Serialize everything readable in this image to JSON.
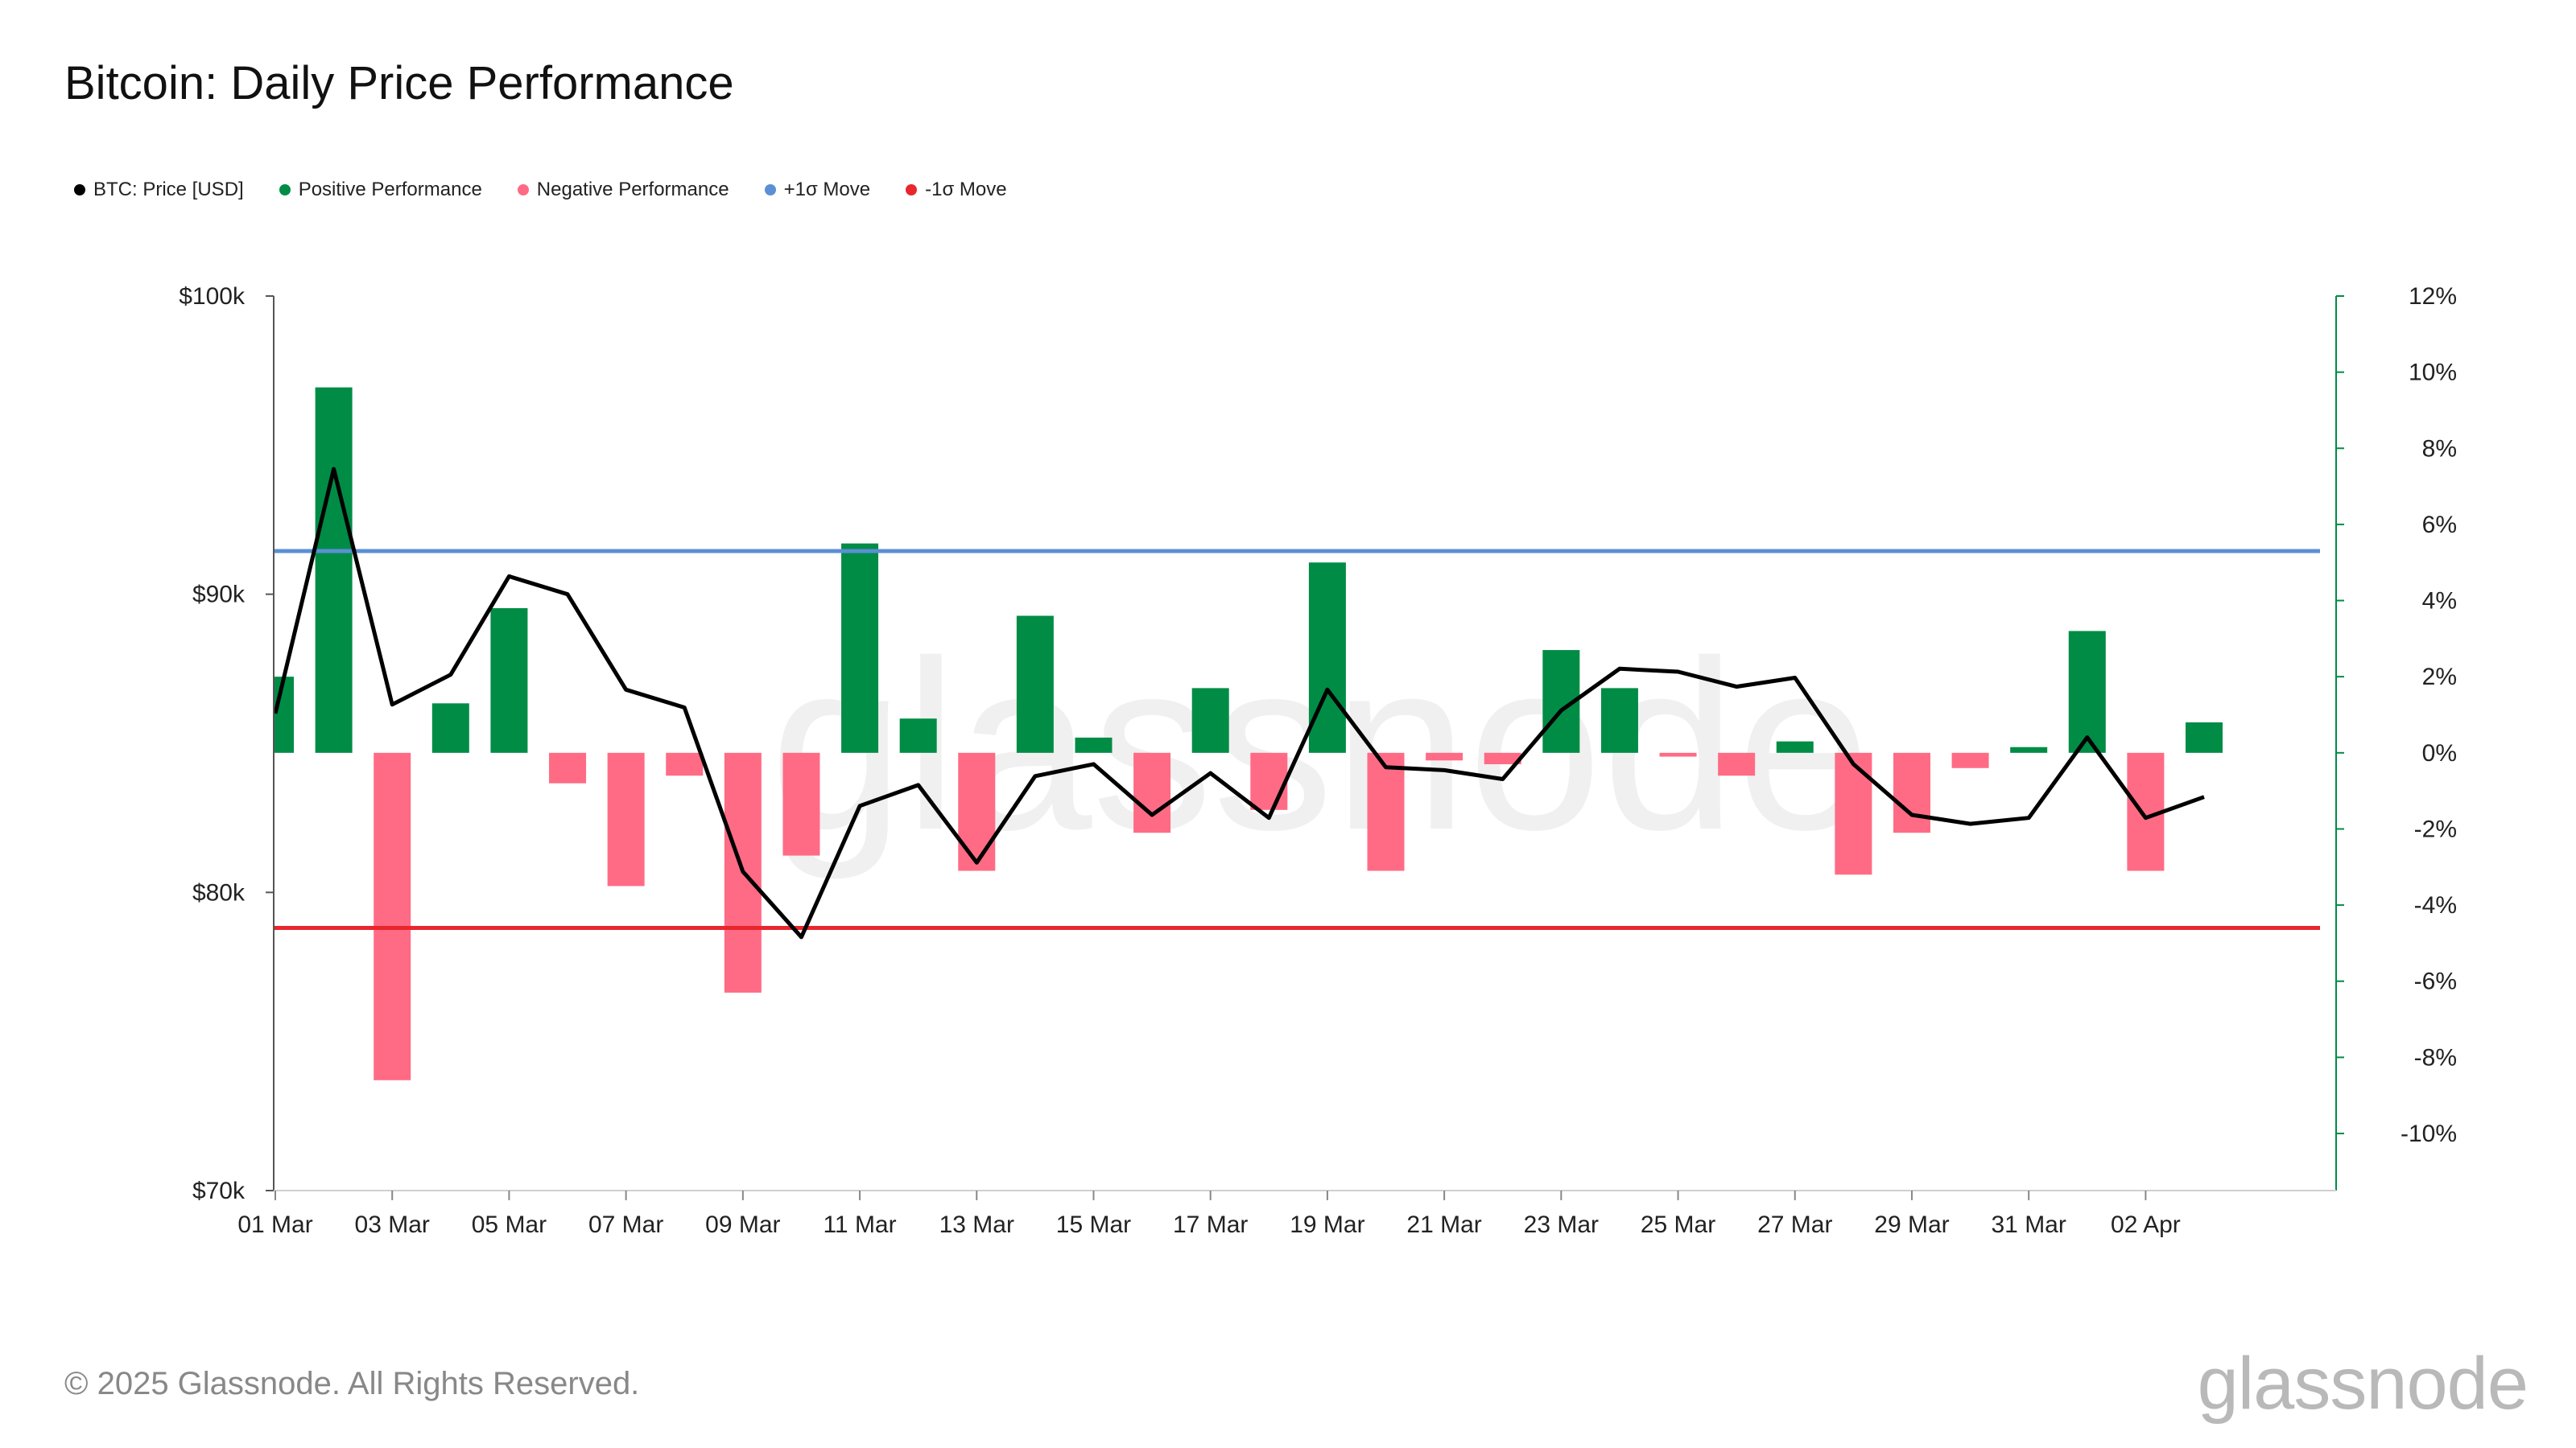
{
  "title": "Bitcoin: Daily Price Performance",
  "footer": "© 2025 Glassnode. All Rights Reserved.",
  "brand": "glassnode",
  "watermark": "glassnode",
  "colors": {
    "price": "#000000",
    "positive": "#008c45",
    "negative": "#ff6b85",
    "plus_sigma": "#5b8fd6",
    "minus_sigma": "#e8262e"
  },
  "legend": [
    {
      "label": "BTC: Price [USD]",
      "color": "#000000"
    },
    {
      "label": "Positive Performance",
      "color": "#008c45"
    },
    {
      "label": "Negative Performance",
      "color": "#ff6b85"
    },
    {
      "label": "+1σ Move",
      "color": "#5b8fd6"
    },
    {
      "label": "-1σ Move",
      "color": "#e8262e"
    }
  ],
  "chart_data": {
    "type": "bar",
    "x": [
      "01 Mar",
      "02 Mar",
      "03 Mar",
      "04 Mar",
      "05 Mar",
      "06 Mar",
      "07 Mar",
      "08 Mar",
      "09 Mar",
      "10 Mar",
      "11 Mar",
      "12 Mar",
      "13 Mar",
      "14 Mar",
      "15 Mar",
      "16 Mar",
      "17 Mar",
      "18 Mar",
      "19 Mar",
      "20 Mar",
      "21 Mar",
      "22 Mar",
      "23 Mar",
      "24 Mar",
      "25 Mar",
      "26 Mar",
      "27 Mar",
      "28 Mar",
      "29 Mar",
      "30 Mar",
      "31 Mar",
      "01 Apr",
      "02 Apr",
      "03 Apr"
    ],
    "x_tick_labels": [
      "01 Mar",
      "03 Mar",
      "05 Mar",
      "07 Mar",
      "09 Mar",
      "11 Mar",
      "13 Mar",
      "15 Mar",
      "17 Mar",
      "19 Mar",
      "21 Mar",
      "23 Mar",
      "25 Mar",
      "27 Mar",
      "29 Mar",
      "31 Mar",
      "02 Apr"
    ],
    "price_usd": [
      86000,
      94200,
      86300,
      87300,
      90600,
      90000,
      86800,
      86200,
      80700,
      78500,
      82900,
      83600,
      81000,
      83900,
      84300,
      82600,
      84000,
      82500,
      86800,
      84200,
      84100,
      83800,
      86100,
      87500,
      87400,
      86900,
      87200,
      84300,
      82600,
      82300,
      82500,
      85200,
      82500,
      83200
    ],
    "daily_return_pct": [
      2.0,
      9.6,
      -8.6,
      1.3,
      3.8,
      -0.8,
      -3.5,
      -0.6,
      -6.3,
      -2.7,
      5.5,
      0.9,
      -3.1,
      3.6,
      0.4,
      -2.1,
      1.7,
      -1.5,
      5.0,
      -3.1,
      -0.2,
      -0.3,
      2.7,
      1.7,
      -0.1,
      -0.6,
      0.3,
      -3.2,
      -2.1,
      -0.4,
      0.15,
      3.2,
      -3.1,
      0.8
    ],
    "plus_sigma_pct": 5.3,
    "minus_sigma_pct": -4.6,
    "y_left": {
      "label": "",
      "range": [
        70000,
        100000
      ],
      "ticks": [
        "$70k",
        "$80k",
        "$90k",
        "$100k"
      ]
    },
    "y_right": {
      "label": "",
      "range": [
        -11.5,
        12
      ],
      "ticks": [
        "12%",
        "10%",
        "8%",
        "6%",
        "4%",
        "2%",
        "0%",
        "-2%",
        "-4%",
        "-6%",
        "-8%",
        "-10%"
      ],
      "tick_values": [
        12,
        10,
        8,
        6,
        4,
        2,
        0,
        -2,
        -4,
        -6,
        -8,
        -10
      ]
    },
    "grid": false,
    "legend_position": "top-left"
  }
}
